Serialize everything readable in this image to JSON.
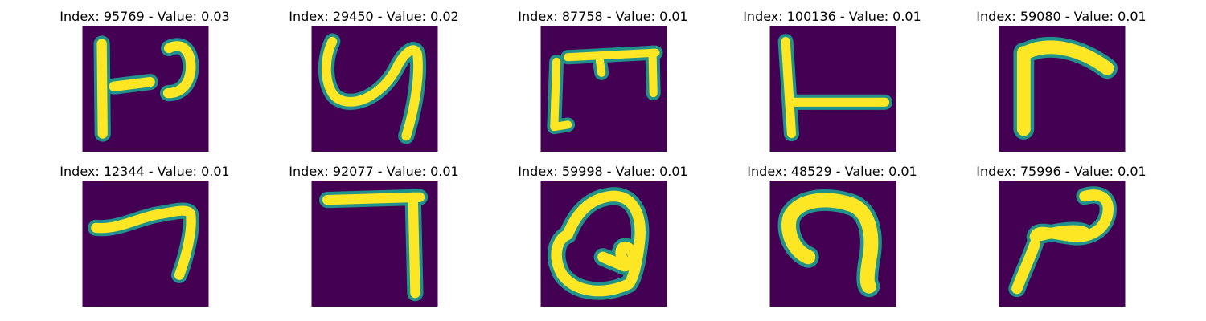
{
  "figure": {
    "colors": {
      "background": "#440154",
      "stroke_mid": "#21918c",
      "stroke_hi": "#fde725"
    },
    "panels": [
      {
        "title": "Index: 95769 - Value: 0.03",
        "glyph": "handwritten-glyph-95769"
      },
      {
        "title": "Index: 29450 - Value: 0.02",
        "glyph": "handwritten-glyph-29450"
      },
      {
        "title": "Index: 87758 - Value: 0.01",
        "glyph": "handwritten-glyph-87758"
      },
      {
        "title": "Index: 100136 - Value: 0.01",
        "glyph": "handwritten-glyph-100136"
      },
      {
        "title": "Index: 59080 - Value: 0.01",
        "glyph": "handwritten-glyph-59080"
      },
      {
        "title": "Index: 12344 - Value: 0.01",
        "glyph": "handwritten-glyph-12344"
      },
      {
        "title": "Index: 92077 - Value: 0.01",
        "glyph": "handwritten-glyph-92077"
      },
      {
        "title": "Index: 59998 - Value: 0.01",
        "glyph": "handwritten-glyph-59998"
      },
      {
        "title": "Index: 48529 - Value: 0.01",
        "glyph": "handwritten-glyph-48529"
      },
      {
        "title": "Index: 75996 - Value: 0.01",
        "glyph": "handwritten-glyph-75996"
      }
    ]
  }
}
